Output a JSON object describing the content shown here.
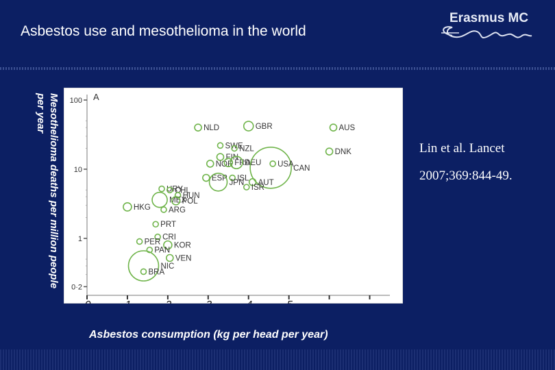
{
  "slide": {
    "title": "Asbestos use and mesothelioma in the world",
    "logo_name": "Erasmus MC",
    "logo_signature": "Erasmus",
    "reference_line1": "Lin et al. Lancet",
    "reference_line2": "2007;369:844-49.",
    "y_axis_title_line1": "Mesothelioma deaths per million people",
    "y_axis_title_line2": "per year",
    "x_axis_title": "Asbestos consumption (kg per head per year)"
  },
  "colors": {
    "background": "#0c1f63",
    "plot_background": "#ffffff",
    "marker": "#6fb44a",
    "text_on_plot": "#333333"
  },
  "chart_data": {
    "type": "scatter",
    "panel_label": "A",
    "y_scale": "log",
    "yticks": [
      0.2,
      1,
      10,
      100
    ],
    "ytick_labels": [
      "0·2",
      "1",
      "10",
      "100"
    ],
    "ylim": [
      0.15,
      120
    ],
    "xlim": [
      0,
      7.5
    ],
    "xticks": [
      0,
      1,
      2,
      3,
      4,
      5,
      6,
      7
    ],
    "xtick_labels": [
      "0",
      "1",
      "2",
      "3",
      "4",
      "5",
      "",
      ""
    ],
    "grid": false,
    "points": [
      {
        "label": "NLD",
        "x": 2.75,
        "y": 40,
        "size": 5
      },
      {
        "label": "GBR",
        "x": 4.0,
        "y": 42,
        "size": 7
      },
      {
        "label": "AUS",
        "x": 6.1,
        "y": 40,
        "size": 5
      },
      {
        "label": "SWE",
        "x": 3.3,
        "y": 22,
        "size": 4
      },
      {
        "label": "NZL",
        "x": 3.65,
        "y": 20,
        "size": 4
      },
      {
        "label": "FIN",
        "x": 3.3,
        "y": 15,
        "size": 5
      },
      {
        "label": "DNK",
        "x": 6.0,
        "y": 18,
        "size": 5
      },
      {
        "label": "NOR",
        "x": 3.05,
        "y": 12,
        "size": 5
      },
      {
        "label": "FRA",
        "x": 3.5,
        "y": 12.5,
        "size": 6
      },
      {
        "label": "DEU",
        "x": 3.7,
        "y": 12.5,
        "size": 9
      },
      {
        "label": "CAN",
        "x": 4.55,
        "y": 10.5,
        "size": 30
      },
      {
        "label": "USA",
        "x": 4.6,
        "y": 12,
        "size": 4
      },
      {
        "label": "ESP",
        "x": 2.95,
        "y": 7.5,
        "size": 5
      },
      {
        "label": "ISL",
        "x": 3.6,
        "y": 7.5,
        "size": 4
      },
      {
        "label": "AUT",
        "x": 4.1,
        "y": 6.5,
        "size": 5
      },
      {
        "label": "ISR",
        "x": 3.95,
        "y": 5.5,
        "size": 4
      },
      {
        "label": "JPN",
        "x": 3.25,
        "y": 6.5,
        "size": 13
      },
      {
        "label": "URY",
        "x": 1.85,
        "y": 5.2,
        "size": 4
      },
      {
        "label": "CHL",
        "x": 2.05,
        "y": 5.0,
        "size": 4
      },
      {
        "label": "HUN",
        "x": 2.25,
        "y": 4.2,
        "size": 4
      },
      {
        "label": "MEX",
        "x": 1.8,
        "y": 3.6,
        "size": 11
      },
      {
        "label": "POL",
        "x": 2.2,
        "y": 3.5,
        "size": 6
      },
      {
        "label": "HKG",
        "x": 1.0,
        "y": 2.85,
        "size": 6
      },
      {
        "label": "ARG",
        "x": 1.9,
        "y": 2.6,
        "size": 4
      },
      {
        "label": "PRT",
        "x": 1.7,
        "y": 1.6,
        "size": 4
      },
      {
        "label": "CRI",
        "x": 1.75,
        "y": 1.05,
        "size": 4
      },
      {
        "label": "PER",
        "x": 1.3,
        "y": 0.9,
        "size": 4
      },
      {
        "label": "KOR",
        "x": 2.0,
        "y": 0.8,
        "size": 6
      },
      {
        "label": "PAN",
        "x": 1.55,
        "y": 0.68,
        "size": 4
      },
      {
        "label": "VEN",
        "x": 2.05,
        "y": 0.52,
        "size": 5
      },
      {
        "label": "NIC",
        "x": 1.4,
        "y": 0.4,
        "size": 22
      },
      {
        "label": "BRA",
        "x": 1.4,
        "y": 0.33,
        "size": 4
      }
    ]
  }
}
